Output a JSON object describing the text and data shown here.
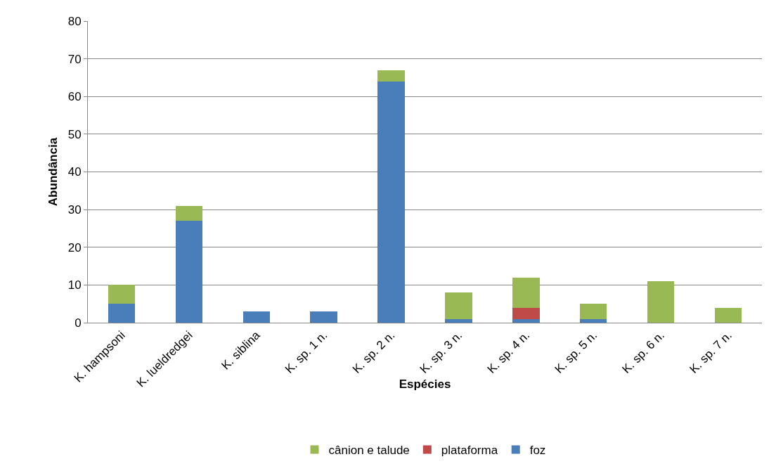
{
  "chart_data": {
    "type": "bar",
    "stacked": true,
    "xlabel": "Espécies",
    "ylabel": "Abundância",
    "categories": [
      "K. hampsoni",
      "K. lueldredgei",
      "K. siblina",
      "K. sp. 1 n.",
      "K. sp. 2 n.",
      "K. sp. 3 n.",
      "K. sp. 4 n.",
      "K. sp. 5 n.",
      "K. sp. 6 n.",
      "K. sp. 7 n."
    ],
    "series": [
      {
        "name": "foz",
        "color": "#4a7ebb",
        "values": [
          5,
          27,
          3,
          3,
          64,
          1,
          1,
          1,
          0,
          0
        ]
      },
      {
        "name": "plataforma",
        "color": "#be4b48",
        "values": [
          0,
          0,
          0,
          0,
          0,
          0,
          3,
          0,
          0,
          0
        ]
      },
      {
        "name": "cânion e talude",
        "color": "#98b954",
        "values": [
          5,
          4,
          0,
          0,
          3,
          7,
          8,
          4,
          11,
          4
        ]
      }
    ],
    "ylim": [
      0,
      80
    ],
    "yticks": [
      0,
      10,
      20,
      30,
      40,
      50,
      60,
      70,
      80
    ],
    "grid": "y",
    "legend": "bottom"
  }
}
